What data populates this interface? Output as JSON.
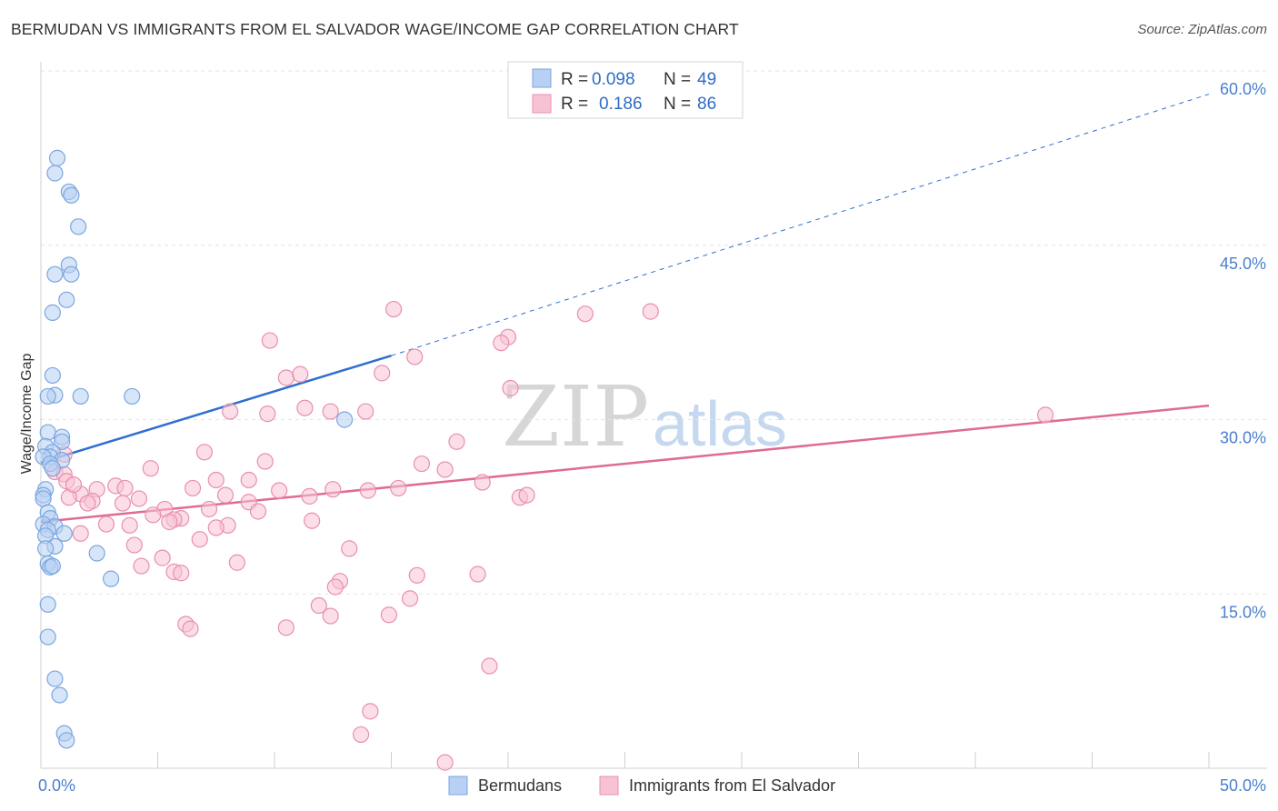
{
  "title": "BERMUDAN VS IMMIGRANTS FROM EL SALVADOR WAGE/INCOME GAP CORRELATION CHART",
  "source": "Source: ZipAtlas.com",
  "watermark": {
    "zip": "ZIP",
    "atlas": "atlas"
  },
  "colors": {
    "blue_fill": "#b7d0f3",
    "blue_stroke": "#7aa6e0",
    "blue_line": "#2f6fd0",
    "pink_fill": "#f7c3d4",
    "pink_stroke": "#e98fae",
    "pink_line": "#e06a96",
    "grid": "#e3e3e3",
    "axis_text": "#4a7fcf"
  },
  "legend": {
    "rows": [
      {
        "r_label": "R =",
        "r_value": "0.098",
        "n_label": "N =",
        "n_value": "49"
      },
      {
        "r_label": "R =",
        "r_value": "0.186",
        "n_label": "N =",
        "n_value": "86"
      }
    ]
  },
  "chart_data": {
    "type": "scatter",
    "title": "BERMUDAN VS IMMIGRANTS FROM EL SALVADOR WAGE/INCOME GAP CORRELATION CHART",
    "xlabel": "",
    "ylabel": "Wage/Income Gap",
    "xlim": [
      0,
      50
    ],
    "ylim": [
      0,
      60
    ],
    "x_tick_labels": [
      "0.0%",
      "50.0%"
    ],
    "y_ticks": [
      15,
      30,
      45,
      60
    ],
    "y_tick_labels": [
      "15.0%",
      "30.0%",
      "45.0%",
      "60.0%"
    ],
    "grid": true,
    "legend_placement": "top-center",
    "series": [
      {
        "name": "Bermudans",
        "color": "#b7d0f3",
        "trend": {
          "x0": 0,
          "y0": 26.3,
          "x1": 15,
          "y1": 35.5,
          "x_ext": 50,
          "y_ext": 58.0
        },
        "points": [
          [
            0.7,
            52.5
          ],
          [
            0.6,
            51.2
          ],
          [
            1.2,
            49.6
          ],
          [
            1.3,
            49.3
          ],
          [
            1.6,
            46.6
          ],
          [
            1.2,
            43.3
          ],
          [
            1.3,
            42.5
          ],
          [
            0.6,
            42.5
          ],
          [
            1.1,
            40.3
          ],
          [
            0.5,
            39.2
          ],
          [
            0.5,
            33.8
          ],
          [
            0.6,
            32.1
          ],
          [
            0.3,
            32.0
          ],
          [
            1.7,
            32.0
          ],
          [
            3.9,
            32.0
          ],
          [
            13.0,
            30.0
          ],
          [
            0.3,
            28.9
          ],
          [
            0.9,
            28.5
          ],
          [
            0.9,
            28.1
          ],
          [
            0.2,
            27.7
          ],
          [
            0.5,
            27.2
          ],
          [
            0.4,
            26.8
          ],
          [
            0.1,
            26.8
          ],
          [
            0.9,
            26.5
          ],
          [
            0.4,
            26.2
          ],
          [
            0.5,
            25.8
          ],
          [
            0.2,
            24.0
          ],
          [
            0.1,
            23.5
          ],
          [
            0.1,
            23.2
          ],
          [
            0.3,
            22.0
          ],
          [
            0.4,
            21.5
          ],
          [
            0.1,
            21.0
          ],
          [
            0.6,
            20.8
          ],
          [
            0.3,
            20.5
          ],
          [
            1.0,
            20.2
          ],
          [
            0.2,
            20.0
          ],
          [
            0.6,
            19.1
          ],
          [
            0.2,
            18.9
          ],
          [
            2.4,
            18.5
          ],
          [
            0.3,
            17.6
          ],
          [
            0.4,
            17.3
          ],
          [
            3.0,
            16.3
          ],
          [
            0.3,
            14.1
          ],
          [
            0.3,
            11.3
          ],
          [
            0.6,
            7.7
          ],
          [
            0.8,
            6.3
          ],
          [
            1.0,
            3.0
          ],
          [
            1.1,
            2.4
          ],
          [
            0.5,
            17.4
          ]
        ]
      },
      {
        "name": "Immigrants from El Salvador",
        "color": "#f7c3d4",
        "trend": {
          "x0": 0,
          "y0": 21.2,
          "x1": 50,
          "y1": 31.2
        },
        "points": [
          [
            15.1,
            39.5
          ],
          [
            23.3,
            39.1
          ],
          [
            26.1,
            39.3
          ],
          [
            9.8,
            36.8
          ],
          [
            20.0,
            37.1
          ],
          [
            19.7,
            36.6
          ],
          [
            16.0,
            35.4
          ],
          [
            10.5,
            33.6
          ],
          [
            11.1,
            33.9
          ],
          [
            14.6,
            34.0
          ],
          [
            20.1,
            32.7
          ],
          [
            11.3,
            31.0
          ],
          [
            8.1,
            30.7
          ],
          [
            9.7,
            30.5
          ],
          [
            12.4,
            30.7
          ],
          [
            13.9,
            30.7
          ],
          [
            43.0,
            30.4
          ],
          [
            17.8,
            28.1
          ],
          [
            1.0,
            27.0
          ],
          [
            7.0,
            27.2
          ],
          [
            9.6,
            26.4
          ],
          [
            16.3,
            26.2
          ],
          [
            0.6,
            25.5
          ],
          [
            4.7,
            25.8
          ],
          [
            17.3,
            25.7
          ],
          [
            1.0,
            25.3
          ],
          [
            1.1,
            24.7
          ],
          [
            7.5,
            24.8
          ],
          [
            8.9,
            24.8
          ],
          [
            18.9,
            24.6
          ],
          [
            3.2,
            24.3
          ],
          [
            6.5,
            24.1
          ],
          [
            2.4,
            24.0
          ],
          [
            3.6,
            24.1
          ],
          [
            10.2,
            23.9
          ],
          [
            12.5,
            24.0
          ],
          [
            15.3,
            24.1
          ],
          [
            14.0,
            23.9
          ],
          [
            1.7,
            23.6
          ],
          [
            7.9,
            23.5
          ],
          [
            1.2,
            23.3
          ],
          [
            4.2,
            23.2
          ],
          [
            11.5,
            23.4
          ],
          [
            20.5,
            23.3
          ],
          [
            20.8,
            23.5
          ],
          [
            2.2,
            23.0
          ],
          [
            3.5,
            22.8
          ],
          [
            8.9,
            22.9
          ],
          [
            5.3,
            22.3
          ],
          [
            7.2,
            22.3
          ],
          [
            9.3,
            22.1
          ],
          [
            4.8,
            21.8
          ],
          [
            6.0,
            21.5
          ],
          [
            5.7,
            21.4
          ],
          [
            11.6,
            21.3
          ],
          [
            5.5,
            21.2
          ],
          [
            2.8,
            21.0
          ],
          [
            3.8,
            20.9
          ],
          [
            8.0,
            20.9
          ],
          [
            7.5,
            20.7
          ],
          [
            1.7,
            20.2
          ],
          [
            6.8,
            19.7
          ],
          [
            4.0,
            19.2
          ],
          [
            13.2,
            18.9
          ],
          [
            5.2,
            18.1
          ],
          [
            8.4,
            17.7
          ],
          [
            4.3,
            17.4
          ],
          [
            5.7,
            16.9
          ],
          [
            6.0,
            16.8
          ],
          [
            16.1,
            16.6
          ],
          [
            18.7,
            16.7
          ],
          [
            12.8,
            16.1
          ],
          [
            12.6,
            15.6
          ],
          [
            15.8,
            14.6
          ],
          [
            11.9,
            14.0
          ],
          [
            12.4,
            13.1
          ],
          [
            14.9,
            13.2
          ],
          [
            6.2,
            12.4
          ],
          [
            6.4,
            12.0
          ],
          [
            10.5,
            12.1
          ],
          [
            19.2,
            8.8
          ],
          [
            14.1,
            4.9
          ],
          [
            13.7,
            2.9
          ],
          [
            17.3,
            0.5
          ],
          [
            2.0,
            22.8
          ],
          [
            1.4,
            24.4
          ]
        ]
      }
    ]
  }
}
